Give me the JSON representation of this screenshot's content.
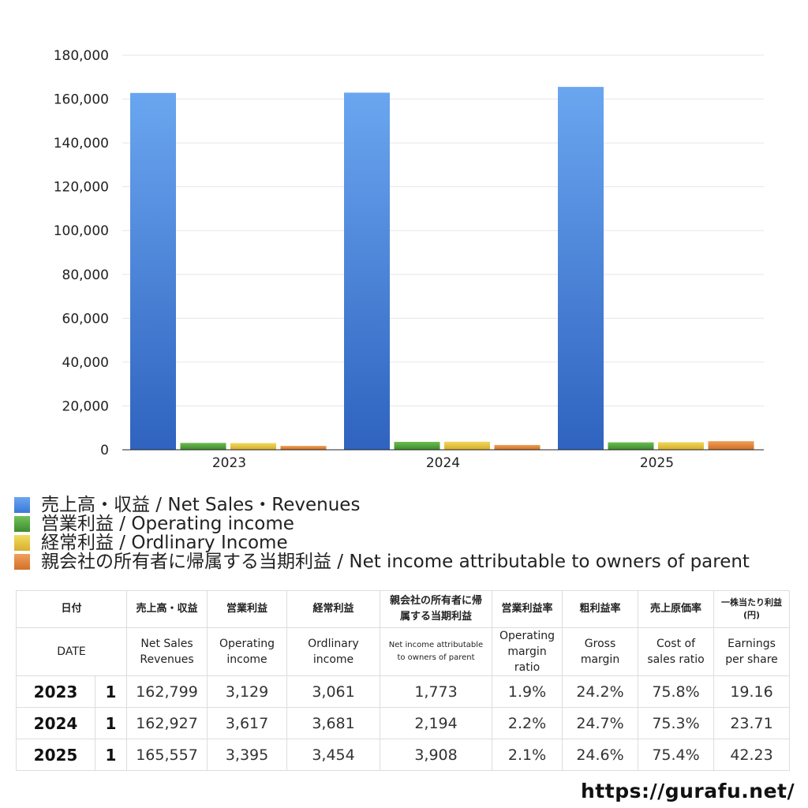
{
  "chart_data": {
    "type": "bar",
    "categories": [
      "2023",
      "2024",
      "2025"
    ],
    "series": [
      {
        "name": "売上高・収益 / Net Sales・Revenues",
        "values": [
          162799,
          162927,
          165557
        ],
        "color": "#3f7fe0"
      },
      {
        "name": "営業利益 / Operating income",
        "values": [
          3129,
          3617,
          3395
        ],
        "color": "#4f9e3a"
      },
      {
        "name": "経常利益 / Ordlinary Income",
        "values": [
          3061,
          3681,
          3454
        ],
        "color": "#e0c23a"
      },
      {
        "name": "親会社の所有者に帰属する当期利益 / Net income attributable to owners of parent",
        "values": [
          1773,
          2194,
          3908
        ],
        "color": "#e08437"
      }
    ],
    "y_ticks": [
      "0",
      "20,000",
      "40,000",
      "60,000",
      "80,000",
      "100,000",
      "120,000",
      "140,000",
      "160,000",
      "180,000"
    ],
    "ylim": [
      0,
      180000
    ],
    "grid": true,
    "legend_position": "bottom",
    "title": "",
    "xlabel": "",
    "ylabel": ""
  },
  "table": {
    "header_jp": [
      "日付",
      "売上高・収益",
      "営業利益",
      "経常利益",
      "親会社の所有者に帰属する当期利益",
      "営業利益率",
      "粗利益率",
      "売上原価率",
      "一株当たり利益(円)"
    ],
    "header_en": [
      "DATE",
      "Net Sales Revenues",
      "Operating income",
      "Ordlinary income",
      "Net income attributable to owners of parent",
      "Operating margin ratio",
      "Gross margin",
      "Cost of sales ratio",
      "Earnings per share"
    ],
    "rows": [
      {
        "year": "2023",
        "q": "1",
        "sales": "162,799",
        "op": "3,129",
        "ord": "3,061",
        "net": "1,773",
        "opm": "1.9%",
        "gm": "24.2%",
        "cos": "75.8%",
        "eps": "19.16"
      },
      {
        "year": "2024",
        "q": "1",
        "sales": "162,927",
        "op": "3,617",
        "ord": "3,681",
        "net": "2,194",
        "opm": "2.2%",
        "gm": "24.7%",
        "cos": "75.3%",
        "eps": "23.71"
      },
      {
        "year": "2025",
        "q": "1",
        "sales": "165,557",
        "op": "3,395",
        "ord": "3,454",
        "net": "3,908",
        "opm": "2.1%",
        "gm": "24.6%",
        "cos": "75.4%",
        "eps": "42.23"
      }
    ]
  },
  "source": "https://gurafu.net/"
}
